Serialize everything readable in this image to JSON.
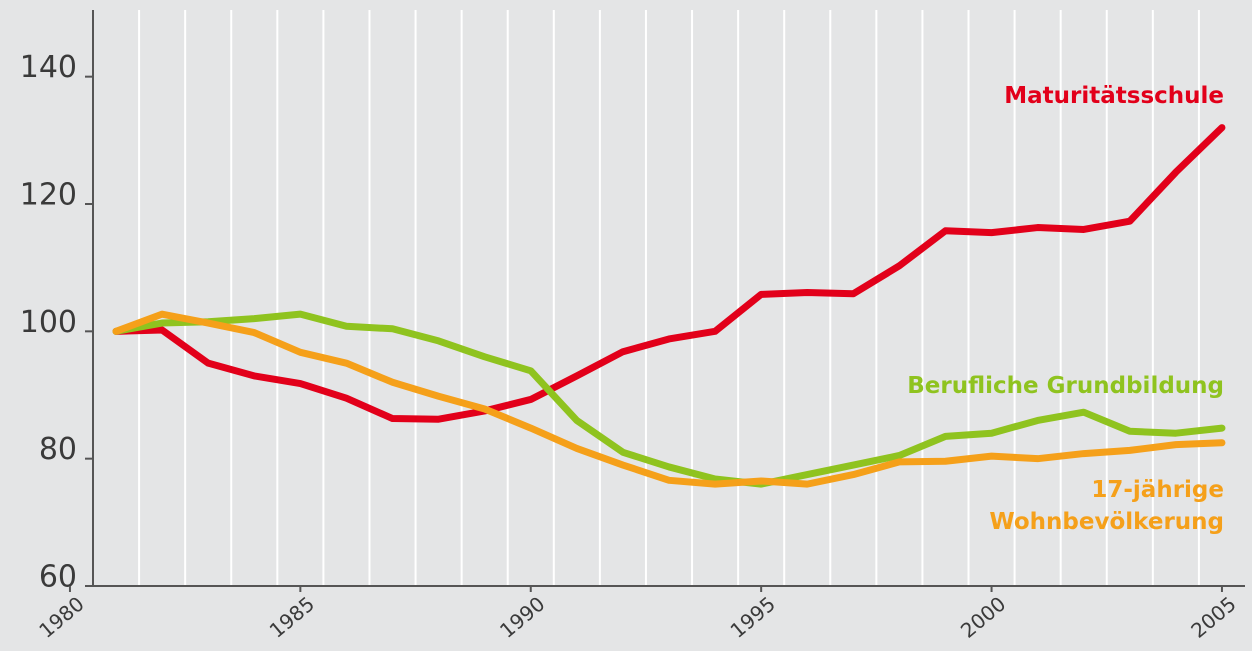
{
  "chart_data": {
    "type": "line",
    "x": [
      1981,
      1982,
      1983,
      1984,
      1985,
      1986,
      1987,
      1988,
      1989,
      1990,
      1991,
      1992,
      1993,
      1994,
      1995,
      1996,
      1997,
      1998,
      1999,
      2000,
      2001,
      2002,
      2003,
      2004,
      2005
    ],
    "series": [
      {
        "name": "Maturitätsschule",
        "color": "#e2001a",
        "values": [
          100,
          100.2,
          95,
          93,
          91.8,
          89.5,
          86.3,
          86.2,
          87.5,
          89.3,
          93,
          96.8,
          98.8,
          100,
          105.8,
          106.1,
          105.9,
          110.3,
          115.8,
          115.5,
          116.3,
          116,
          117.3,
          125,
          132
        ]
      },
      {
        "name": "Berufliche Grundbildung",
        "color": "#8fc31f",
        "values": [
          100,
          101.3,
          101.5,
          102,
          102.7,
          100.8,
          100.4,
          98.5,
          96,
          93.8,
          86,
          81,
          78.7,
          76.8,
          76,
          77.5,
          79,
          80.5,
          83.5,
          84,
          86,
          87.3,
          84.3,
          84,
          84.8
        ]
      },
      {
        "name": "17-jährige Wohnbevölkerung",
        "color": "#f5a01a",
        "values": [
          100,
          102.7,
          101.3,
          99.8,
          96.7,
          95,
          92,
          89.8,
          87.8,
          84.8,
          81.6,
          79,
          76.6,
          76,
          76.5,
          76,
          77.5,
          79.5,
          79.6,
          80.4,
          80,
          80.8,
          81.3,
          82.2,
          82.5
        ]
      }
    ],
    "xlim": [
      1980.5,
      2005.5
    ],
    "xticks": [
      1980,
      1985,
      1990,
      1995,
      2000,
      2005
    ],
    "ylim": [
      60,
      150
    ],
    "yticks": [
      60,
      80,
      100,
      120,
      140
    ],
    "grid": true
  }
}
